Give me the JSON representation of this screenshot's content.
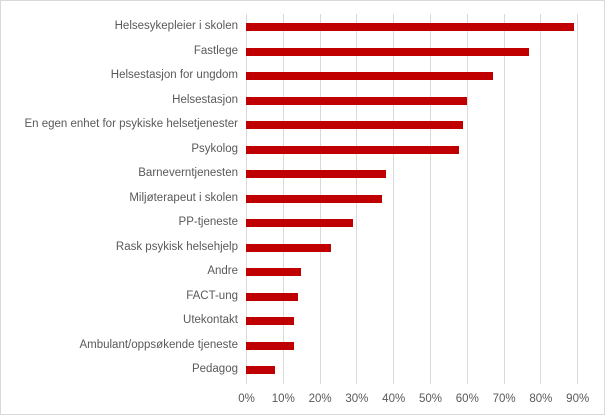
{
  "chart_data": {
    "type": "bar",
    "orientation": "horizontal",
    "title": "",
    "xlabel": "",
    "ylabel": "",
    "xlim": [
      0,
      0.9
    ],
    "grid": true,
    "legend": null,
    "bar_color": "#c00000",
    "categories": [
      "Helsesykepleier i skolen",
      "Fastlege",
      "Helsestasjon for ungdom",
      "Helsestasjon",
      "En egen enhet for psykiske helsetjenester",
      "Psykolog",
      "Barneverntjenesten",
      "Miljøterapeut i skolen",
      "PP-tjeneste",
      "Rask psykisk helsehjelp",
      "Andre",
      "FACT-ung",
      "Utekontakt",
      "Ambulant/oppsøkende tjeneste",
      "Pedagog"
    ],
    "values": [
      0.89,
      0.77,
      0.67,
      0.6,
      0.59,
      0.58,
      0.38,
      0.37,
      0.29,
      0.23,
      0.15,
      0.14,
      0.13,
      0.13,
      0.08
    ],
    "x_ticks": [
      "0%",
      "10%",
      "20%",
      "30%",
      "40%",
      "50%",
      "60%",
      "70%",
      "80%",
      "90%"
    ]
  }
}
